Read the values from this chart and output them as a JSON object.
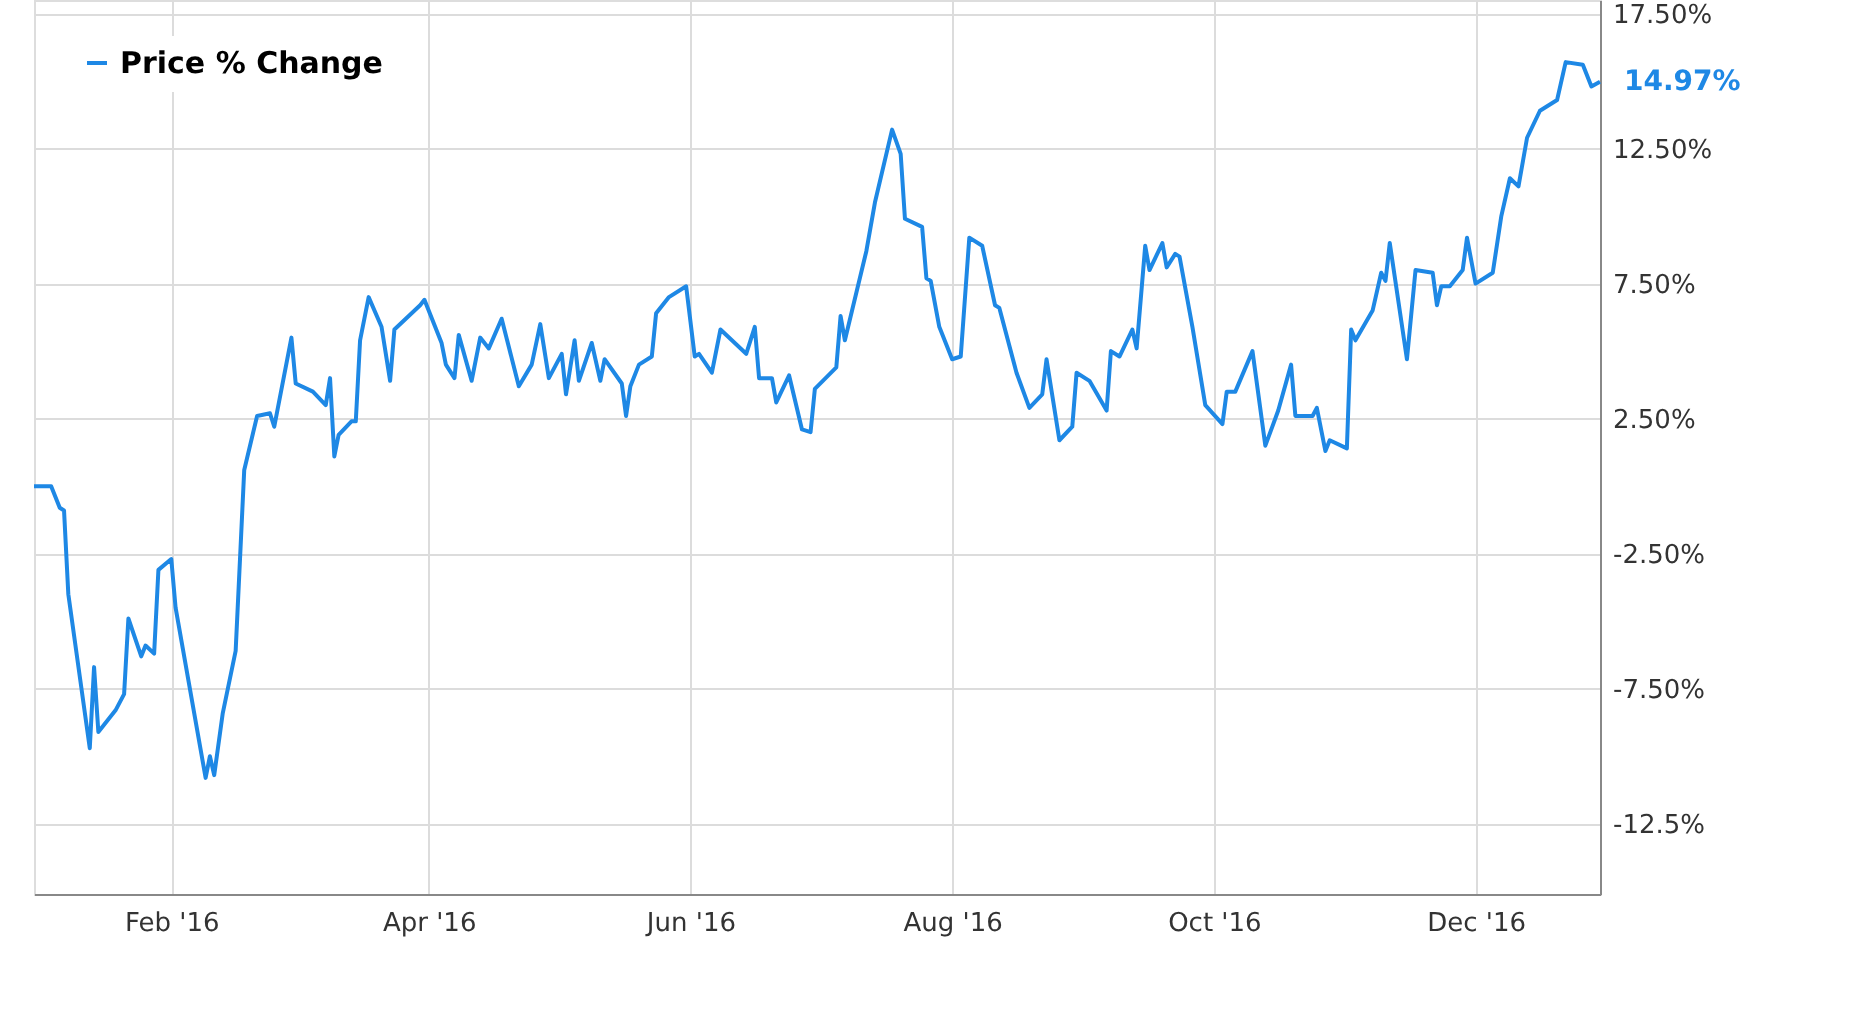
{
  "chart_data": {
    "type": "line",
    "legend": "top left",
    "grid": true,
    "marker": "none",
    "line_style": "solid",
    "xlim": [
      "2015-12-31",
      "2016-12-30"
    ],
    "xticks": [
      {
        "value": "2016-02-01",
        "label": "Feb '16"
      },
      {
        "value": "2016-04-01",
        "label": "Apr '16"
      },
      {
        "value": "2016-06-01",
        "label": "Jun '16"
      },
      {
        "value": "2016-08-01",
        "label": "Aug '16"
      },
      {
        "value": "2016-10-01",
        "label": "Oct '16"
      },
      {
        "value": "2016-12-01",
        "label": "Dec '16"
      }
    ],
    "ylim": [
      -15.1,
      18.0
    ],
    "yticks": [
      {
        "value": -12.5,
        "label": "-12.5%"
      },
      {
        "value": -7.5,
        "label": "-7.50%"
      },
      {
        "value": -2.5,
        "label": "-2.50%"
      },
      {
        "value": 2.5,
        "label": "2.50%"
      },
      {
        "value": 7.5,
        "label": "7.50%"
      },
      {
        "value": 12.5,
        "label": "12.50%"
      },
      {
        "value": 17.5,
        "label": "17.50%"
      }
    ],
    "annotations": [
      {
        "text": "14.97%",
        "x": "2016-12-30",
        "y": 14.97
      }
    ],
    "series": [
      {
        "name": "Price % Change",
        "color": "#1e88e5",
        "x": [
          "2015-12-31",
          "2016-01-04",
          "2016-01-06",
          "2016-01-07",
          "2016-01-08",
          "2016-01-13",
          "2016-01-14",
          "2016-01-15",
          "2016-01-19",
          "2016-01-21",
          "2016-01-22",
          "2016-01-25",
          "2016-01-26",
          "2016-01-28",
          "2016-01-29",
          "2016-02-01",
          "2016-02-02",
          "2016-02-09",
          "2016-02-10",
          "2016-02-11",
          "2016-02-13",
          "2016-02-16",
          "2016-02-18",
          "2016-02-21",
          "2016-02-24",
          "2016-02-25",
          "2016-02-29",
          "2016-03-01",
          "2016-03-05",
          "2016-03-08",
          "2016-03-09",
          "2016-03-10",
          "2016-03-11",
          "2016-03-14",
          "2016-03-15",
          "2016-03-16",
          "2016-03-18",
          "2016-03-21",
          "2016-03-23",
          "2016-03-24",
          "2016-03-30",
          "2016-03-31",
          "2016-04-04",
          "2016-04-05",
          "2016-04-07",
          "2016-04-08",
          "2016-04-11",
          "2016-04-13",
          "2016-04-15",
          "2016-04-18",
          "2016-04-22",
          "2016-04-25",
          "2016-04-27",
          "2016-04-29",
          "2016-05-02",
          "2016-05-03",
          "2016-05-05",
          "2016-05-06",
          "2016-05-09",
          "2016-05-11",
          "2016-05-12",
          "2016-05-16",
          "2016-05-17",
          "2016-05-18",
          "2016-05-20",
          "2016-05-23",
          "2016-05-24",
          "2016-05-27",
          "2016-05-31",
          "2016-06-02",
          "2016-06-03",
          "2016-06-06",
          "2016-06-08",
          "2016-06-14",
          "2016-06-16",
          "2016-06-17",
          "2016-06-20",
          "2016-06-21",
          "2016-06-24",
          "2016-06-27",
          "2016-06-29",
          "2016-06-30",
          "2016-07-05",
          "2016-07-06",
          "2016-07-07",
          "2016-07-12",
          "2016-07-14",
          "2016-07-18",
          "2016-07-20",
          "2016-07-21",
          "2016-07-25",
          "2016-07-26",
          "2016-07-27",
          "2016-07-29",
          "2016-08-01",
          "2016-08-03",
          "2016-08-05",
          "2016-08-08",
          "2016-08-11",
          "2016-08-12",
          "2016-08-16",
          "2016-08-19",
          "2016-08-22",
          "2016-08-23",
          "2016-08-26",
          "2016-08-29",
          "2016-08-30",
          "2016-09-02",
          "2016-09-06",
          "2016-09-07",
          "2016-09-09",
          "2016-09-12",
          "2016-09-13",
          "2016-09-15",
          "2016-09-16",
          "2016-09-19",
          "2016-09-20",
          "2016-09-22",
          "2016-09-23",
          "2016-09-26",
          "2016-09-29",
          "2016-10-03",
          "2016-10-04",
          "2016-10-06",
          "2016-10-10",
          "2016-10-13",
          "2016-10-16",
          "2016-10-19",
          "2016-10-20",
          "2016-10-24",
          "2016-10-25",
          "2016-10-27",
          "2016-10-28",
          "2016-11-01",
          "2016-11-02",
          "2016-11-03",
          "2016-11-07",
          "2016-11-09",
          "2016-11-10",
          "2016-11-11",
          "2016-11-15",
          "2016-11-17",
          "2016-11-21",
          "2016-11-22",
          "2016-11-23",
          "2016-11-25",
          "2016-11-28",
          "2016-11-29",
          "2016-12-01",
          "2016-12-05",
          "2016-12-07",
          "2016-12-09",
          "2016-12-11",
          "2016-12-13",
          "2016-12-16",
          "2016-12-20",
          "2016-12-22",
          "2016-12-26",
          "2016-12-28",
          "2016-12-30"
        ],
        "values": [
          0.0,
          0.0,
          -0.8,
          -0.9,
          -4.0,
          -9.7,
          -6.7,
          -9.1,
          -8.3,
          -7.7,
          -4.9,
          -6.3,
          -5.9,
          -6.2,
          -3.1,
          -2.7,
          -4.5,
          -10.8,
          -10.0,
          -10.7,
          -8.4,
          -6.1,
          0.6,
          2.6,
          2.7,
          2.2,
          5.5,
          3.8,
          3.5,
          3.0,
          4.0,
          1.1,
          1.9,
          2.4,
          2.4,
          5.4,
          7.0,
          5.9,
          3.9,
          5.8,
          6.7,
          6.9,
          5.3,
          4.5,
          4.0,
          5.6,
          3.9,
          5.5,
          5.1,
          6.2,
          3.7,
          4.5,
          6.0,
          4.0,
          4.9,
          3.4,
          5.4,
          3.9,
          5.3,
          3.9,
          4.7,
          3.8,
          2.6,
          3.7,
          4.5,
          4.8,
          6.4,
          7.0,
          7.4,
          4.8,
          4.9,
          4.2,
          5.8,
          4.9,
          5.9,
          4.0,
          4.0,
          3.1,
          4.1,
          2.1,
          2.0,
          3.6,
          4.4,
          6.3,
          5.4,
          8.7,
          10.5,
          13.2,
          12.3,
          9.9,
          9.6,
          7.7,
          7.6,
          5.9,
          4.7,
          4.8,
          9.2,
          8.9,
          6.7,
          6.6,
          4.2,
          2.9,
          3.4,
          4.7,
          1.7,
          2.2,
          4.2,
          3.9,
          2.8,
          5.0,
          4.8,
          5.8,
          5.1,
          8.9,
          8.0,
          9.0,
          8.1,
          8.6,
          8.5,
          5.9,
          3.0,
          2.3,
          3.5,
          3.5,
          5.0,
          1.5,
          2.8,
          4.5,
          2.6,
          2.6,
          2.9,
          1.3,
          1.7,
          1.4,
          5.8,
          5.4,
          6.5,
          7.9,
          7.6,
          9.0,
          4.7,
          8.0,
          7.9,
          6.7,
          7.4,
          7.4,
          8.0,
          9.2,
          7.5,
          7.9,
          10.0,
          11.4,
          11.1,
          12.9,
          13.9,
          14.3,
          15.7,
          15.6,
          14.8,
          14.97
        ]
      }
    ]
  }
}
